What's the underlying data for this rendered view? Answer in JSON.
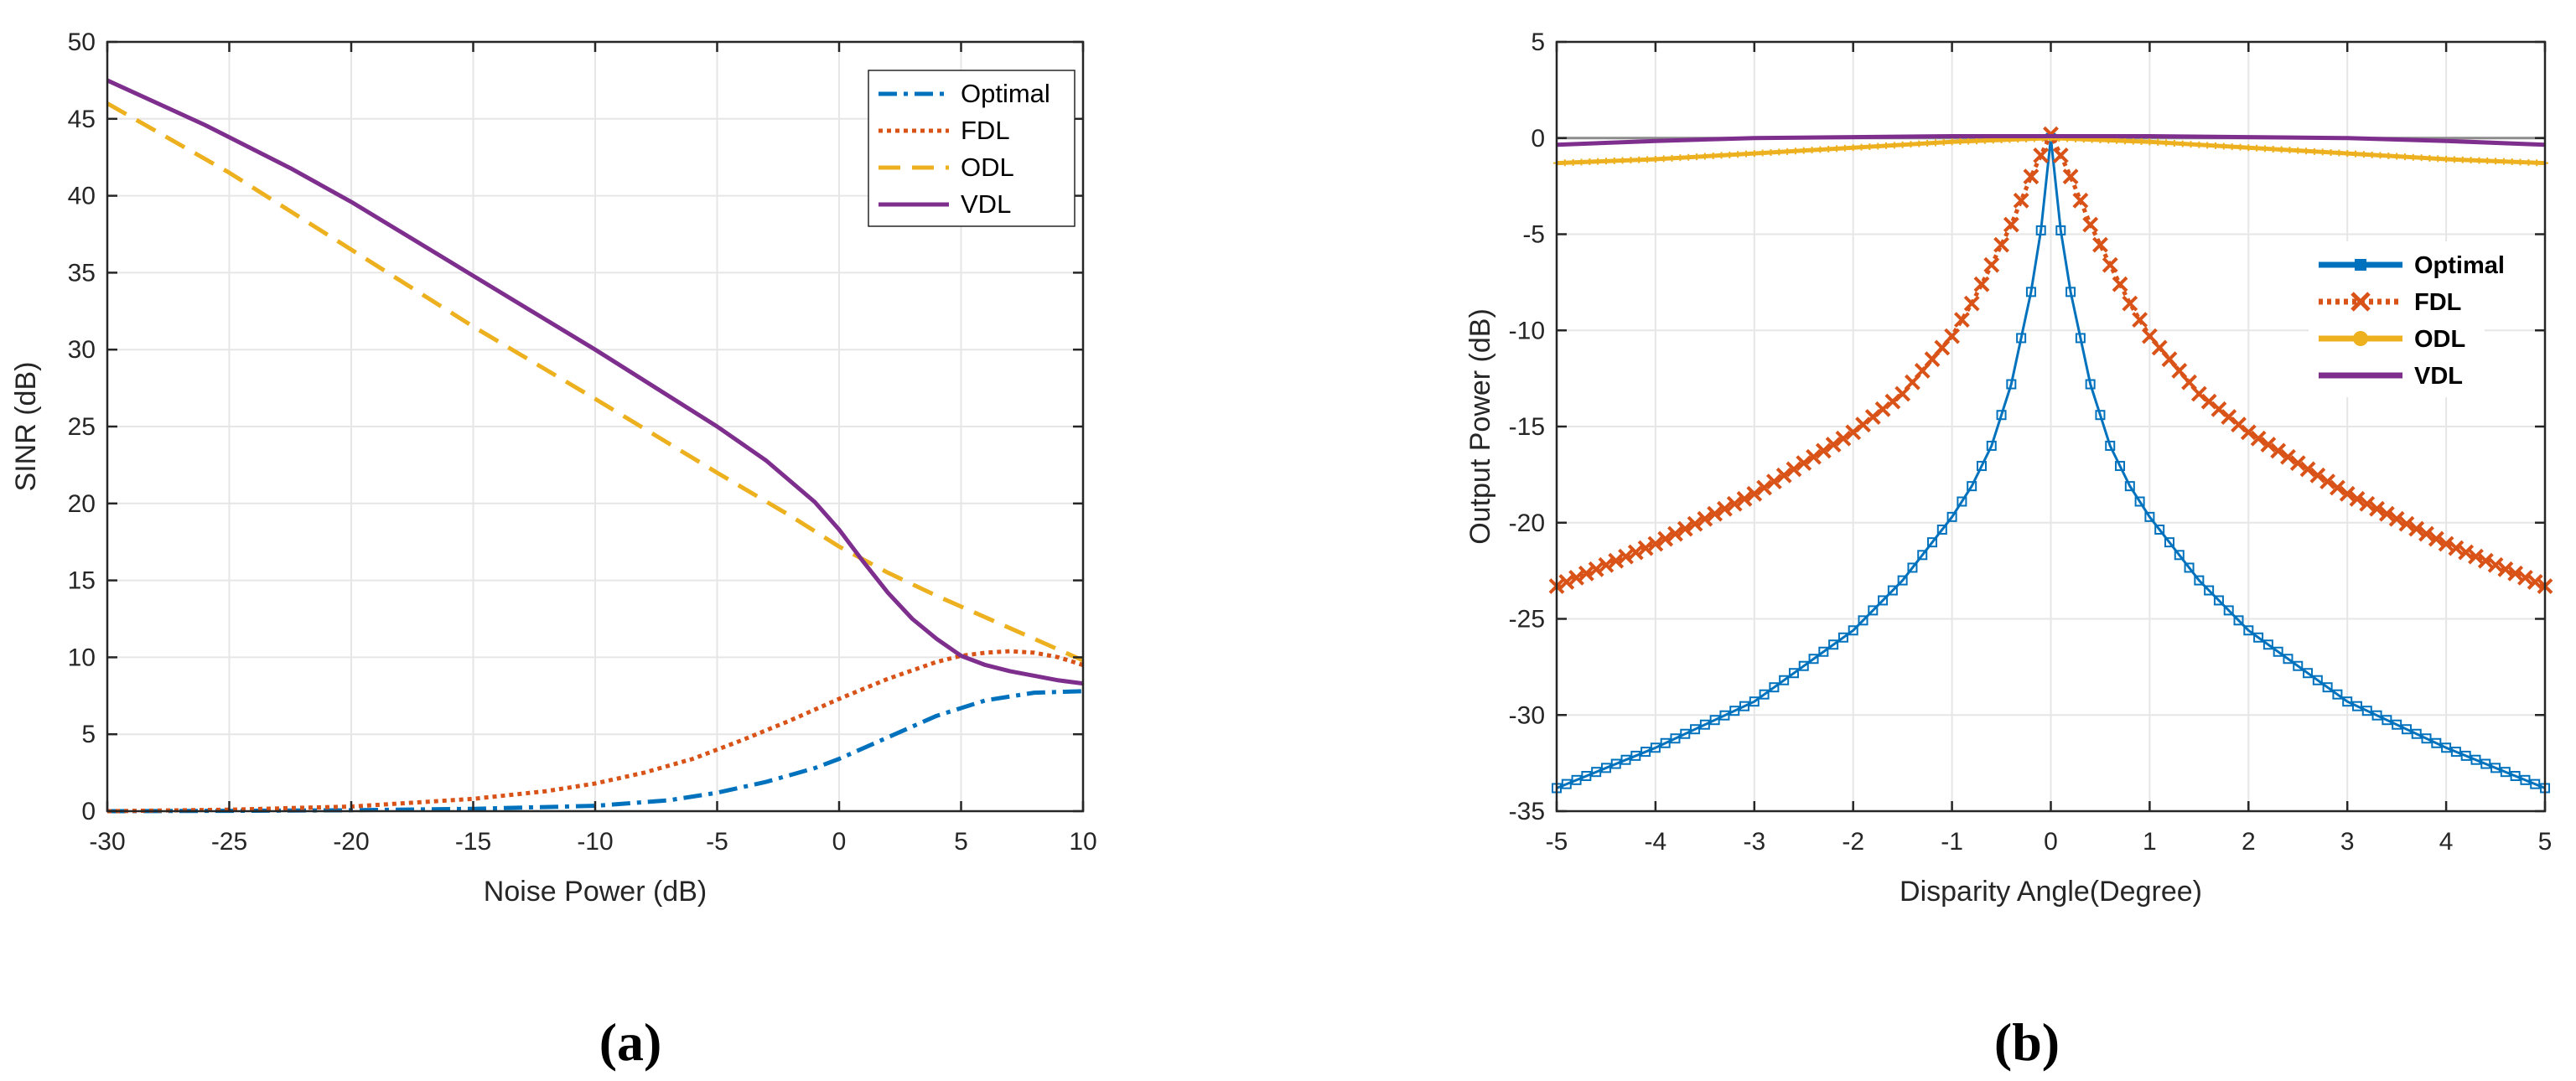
{
  "chart_data": [
    {
      "type": "line",
      "panel_label": "(a)",
      "title": "",
      "xlabel": "Noise Power (dB)",
      "ylabel": "SINR (dB)",
      "xlim": [
        -30,
        10
      ],
      "ylim": [
        0,
        50
      ],
      "xticks": [
        -30,
        -25,
        -20,
        -15,
        -10,
        -5,
        0,
        5,
        10
      ],
      "yticks": [
        0,
        5,
        10,
        15,
        20,
        25,
        30,
        35,
        40,
        45,
        50
      ],
      "legend_position": "top-right",
      "series": [
        {
          "name": "Optimal",
          "color": "#0072BD",
          "style": "dashdot",
          "x": [
            -30,
            -25,
            -20,
            -15,
            -10,
            -7,
            -5,
            -3,
            -1,
            0,
            2,
            4,
            6,
            8,
            10
          ],
          "y": [
            0.0,
            0.02,
            0.06,
            0.15,
            0.35,
            0.7,
            1.2,
            1.9,
            2.8,
            3.4,
            4.8,
            6.2,
            7.2,
            7.7,
            7.8
          ]
        },
        {
          "name": "FDL",
          "color": "#D95319",
          "style": "dotted",
          "x": [
            -30,
            -25,
            -20,
            -15,
            -12,
            -10,
            -8,
            -6,
            -4,
            -2,
            0,
            2,
            4,
            5,
            6,
            7,
            8,
            9,
            10
          ],
          "y": [
            0.0,
            0.1,
            0.3,
            0.8,
            1.3,
            1.8,
            2.5,
            3.4,
            4.6,
            5.9,
            7.3,
            8.6,
            9.7,
            10.1,
            10.3,
            10.4,
            10.3,
            10.0,
            9.5
          ]
        },
        {
          "name": "ODL",
          "color": "#EDB120",
          "style": "dashed",
          "x": [
            -30,
            -25,
            -20,
            -15,
            -10,
            -5,
            -2,
            0,
            2,
            4,
            6,
            8,
            10
          ],
          "y": [
            46.0,
            41.5,
            36.5,
            31.5,
            26.8,
            22.0,
            19.2,
            17.2,
            15.5,
            14.0,
            12.6,
            11.2,
            9.8
          ]
        },
        {
          "name": "VDL",
          "color": "#7E2F8E",
          "style": "solid",
          "x": [
            -30,
            -26,
            -22.5,
            -20,
            -15,
            -10,
            -5,
            -3,
            -1,
            0,
            1,
            2,
            3,
            4,
            5,
            6,
            7,
            8,
            9,
            10
          ],
          "y": [
            47.5,
            44.6,
            41.8,
            39.6,
            34.8,
            30.0,
            25.0,
            22.8,
            20.1,
            18.3,
            16.2,
            14.2,
            12.5,
            11.2,
            10.1,
            9.5,
            9.1,
            8.8,
            8.5,
            8.3
          ]
        }
      ]
    },
    {
      "type": "line",
      "panel_label": "(b)",
      "title": "",
      "xlabel": "Disparity Angle(Degree)",
      "ylabel": "Output Power (dB)",
      "xlim": [
        -5,
        5
      ],
      "ylim": [
        -35,
        5
      ],
      "xticks": [
        -5,
        -4,
        -3,
        -2,
        -1,
        0,
        1,
        2,
        3,
        4,
        5
      ],
      "yticks": [
        5,
        0,
        -5,
        -10,
        -15,
        -20,
        -25,
        -30,
        -35
      ],
      "legend_position": "right",
      "series": [
        {
          "name": "Optimal",
          "color": "#0072BD",
          "style": "solid",
          "marker": "square",
          "x": [
            -5,
            -4,
            -3,
            -2,
            -1.5,
            -1,
            -0.8,
            -0.6,
            -0.4,
            -0.2,
            -0.1,
            0,
            0.1,
            0.2,
            0.4,
            0.6,
            0.8,
            1,
            1.5,
            2,
            3,
            4,
            5
          ],
          "y": [
            -33.8,
            -31.7,
            -29.3,
            -25.6,
            -23.0,
            -19.7,
            -18.1,
            -16.0,
            -12.8,
            -8.0,
            -4.8,
            0.0,
            -4.8,
            -8.0,
            -12.8,
            -16.0,
            -18.1,
            -19.7,
            -23.0,
            -25.6,
            -29.3,
            -31.7,
            -33.8
          ]
        },
        {
          "name": "FDL",
          "color": "#D95319",
          "style": "dotted",
          "marker": "x",
          "x": [
            -5,
            -4,
            -3,
            -2,
            -1.5,
            -1,
            -0.8,
            -0.6,
            -0.4,
            -0.2,
            -0.1,
            0,
            0.1,
            0.2,
            0.4,
            0.6,
            0.8,
            1,
            1.5,
            2,
            3,
            4,
            5
          ],
          "y": [
            -23.3,
            -21.1,
            -18.5,
            -15.3,
            -13.3,
            -10.3,
            -8.6,
            -6.6,
            -4.5,
            -2.0,
            -0.9,
            0.2,
            -0.9,
            -2.0,
            -4.5,
            -6.6,
            -8.6,
            -10.3,
            -13.3,
            -15.3,
            -18.5,
            -21.1,
            -23.3
          ]
        },
        {
          "name": "ODL",
          "color": "#EDB120",
          "style": "solid",
          "marker": "plus",
          "x": [
            -5,
            -4,
            -3,
            -2,
            -1,
            0,
            1,
            2,
            3,
            4,
            5
          ],
          "y": [
            -1.3,
            -1.1,
            -0.8,
            -0.5,
            -0.2,
            0.0,
            -0.2,
            -0.5,
            -0.8,
            -1.1,
            -1.3
          ]
        },
        {
          "name": "VDL",
          "color": "#7E2F8E",
          "style": "solid",
          "marker": "none",
          "x": [
            -5,
            -4,
            -3,
            -2,
            -1,
            0,
            1,
            2,
            3,
            4,
            5
          ],
          "y": [
            -0.35,
            -0.15,
            0.0,
            0.05,
            0.1,
            0.1,
            0.1,
            0.05,
            0.0,
            -0.15,
            -0.35
          ]
        }
      ]
    }
  ]
}
